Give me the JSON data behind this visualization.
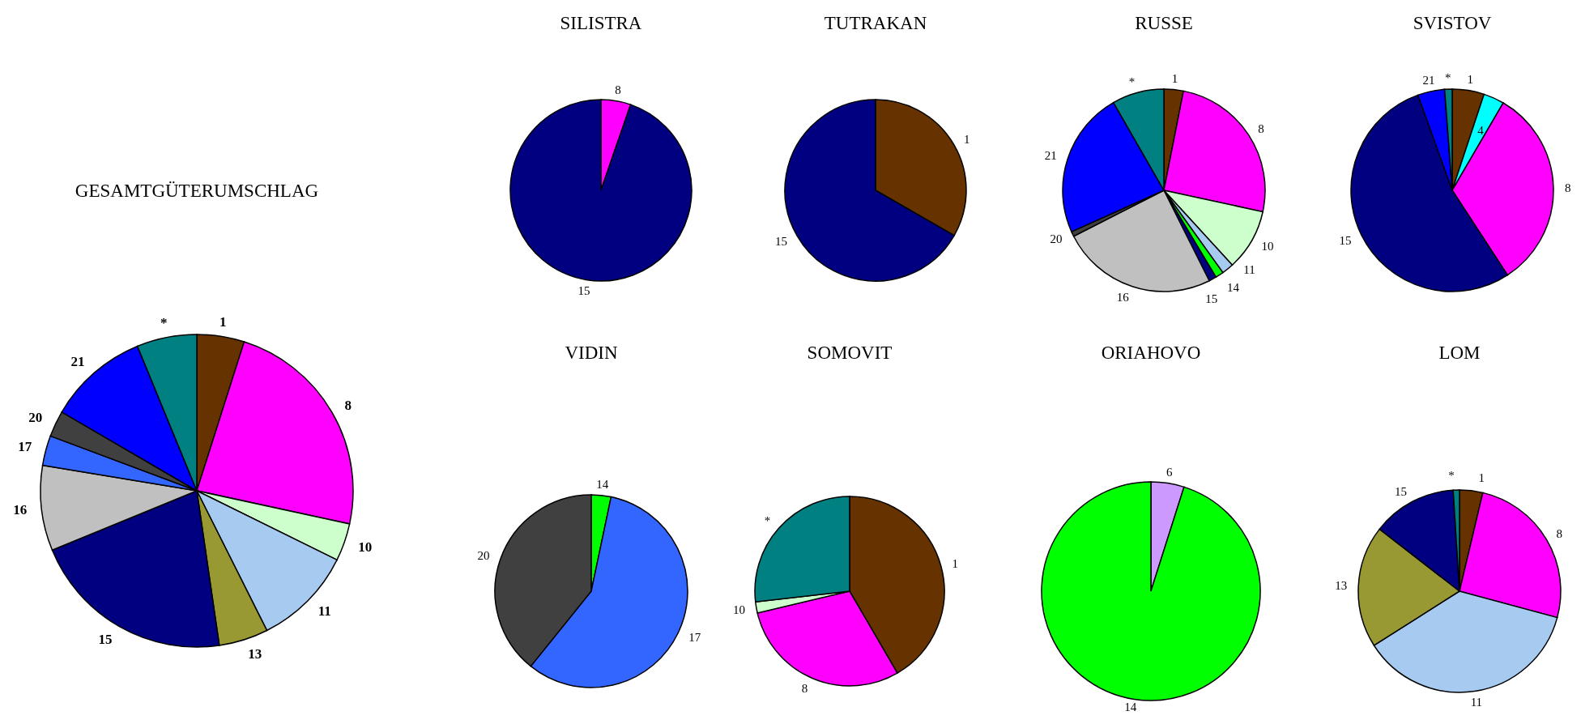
{
  "chart_data": [
    {
      "type": "pie",
      "title": "GESAMTGÜTERUMSCHLAG",
      "categories": [
        "1",
        "8",
        "10",
        "11",
        "13",
        "15",
        "16",
        "17",
        "20",
        "21",
        "*"
      ],
      "values": [
        4.9,
        23.5,
        3.9,
        10.3,
        5.1,
        21.1,
        8.8,
        3.1,
        2.7,
        10.4,
        6.2
      ],
      "colors": [
        "#663300",
        "#ff00ff",
        "#ccffcc",
        "#a6caf0",
        "#999933",
        "#000080",
        "#c0c0c0",
        "#3366ff",
        "#404040",
        "#0000ff",
        "#008080"
      ]
    },
    {
      "type": "pie",
      "title": "SILISTRA",
      "categories": [
        "8",
        "15"
      ],
      "values": [
        5.3,
        94.7
      ],
      "colors": [
        "#ff00ff",
        "#000080"
      ]
    },
    {
      "type": "pie",
      "title": "TUTRAKAN",
      "categories": [
        "1",
        "15"
      ],
      "values": [
        33.3,
        66.7
      ],
      "colors": [
        "#663300",
        "#000080"
      ]
    },
    {
      "type": "pie",
      "title": "RUSSE",
      "categories": [
        "1",
        "8",
        "10",
        "11",
        "14",
        "15",
        "16",
        "20",
        "21",
        "*"
      ],
      "values": [
        3.1,
        25.3,
        9.8,
        1.9,
        1.3,
        1.2,
        24.9,
        0.8,
        23.4,
        8.3
      ],
      "colors": [
        "#663300",
        "#ff00ff",
        "#ccffcc",
        "#a6caf0",
        "#00ff00",
        "#000080",
        "#c0c0c0",
        "#404040",
        "#0000ff",
        "#008080"
      ]
    },
    {
      "type": "pie",
      "title": "SVISTOV",
      "categories": [
        "1",
        "4",
        "8",
        "15",
        "21",
        "*"
      ],
      "values": [
        5.1,
        3.3,
        32.4,
        53.7,
        4.3,
        1.2
      ],
      "colors": [
        "#663300",
        "#00ffff",
        "#ff00ff",
        "#000080",
        "#0000ff",
        "#008080"
      ]
    },
    {
      "type": "pie",
      "title": "VIDIN",
      "categories": [
        "14",
        "17",
        "20"
      ],
      "values": [
        3.3,
        57.5,
        39.2
      ],
      "colors": [
        "#00ff00",
        "#3366ff",
        "#404040"
      ]
    },
    {
      "type": "pie",
      "title": "SOMOVIT",
      "categories": [
        "1",
        "8",
        "10",
        "*"
      ],
      "values": [
        41.6,
        29.7,
        1.9,
        26.8
      ],
      "colors": [
        "#663300",
        "#ff00ff",
        "#ccffcc",
        "#008080"
      ]
    },
    {
      "type": "pie",
      "title": "ORIAHOVO",
      "categories": [
        "6",
        "14"
      ],
      "values": [
        4.9,
        95.1
      ],
      "colors": [
        "#cc99ff",
        "#00ff00"
      ]
    },
    {
      "type": "pie",
      "title": "LOM",
      "categories": [
        "1",
        "8",
        "11",
        "13",
        "15",
        "*"
      ],
      "values": [
        3.7,
        25.5,
        36.8,
        19.5,
        13.5,
        1.0
      ],
      "colors": [
        "#663300",
        "#ff00ff",
        "#a6caf0",
        "#999933",
        "#000080",
        "#008080"
      ]
    }
  ]
}
